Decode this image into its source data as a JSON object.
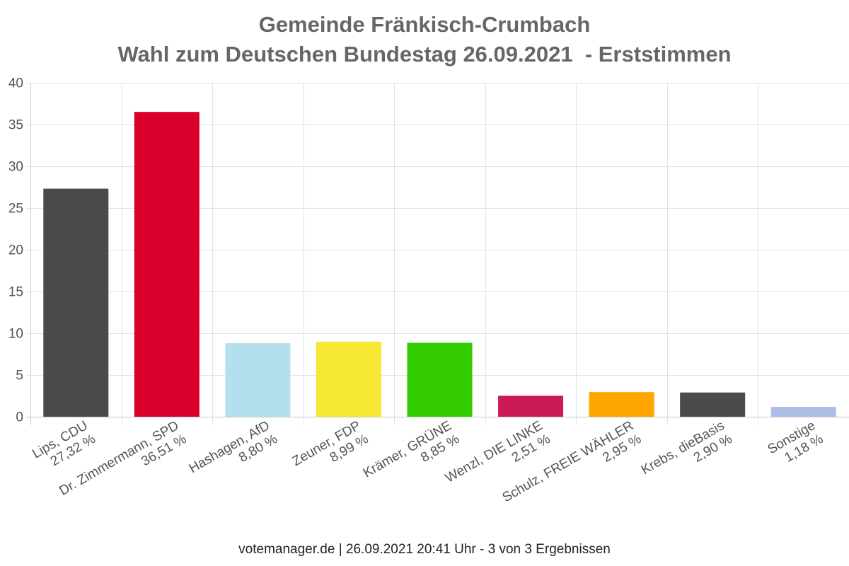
{
  "chart_data": {
    "type": "bar",
    "title": [
      "Gemeinde Fränkisch-Crumbach",
      "Wahl zum Deutschen Bundestag 26.09.2021  - Erststimmen"
    ],
    "xlabel": "",
    "ylabel": "",
    "ylim": [
      0,
      40
    ],
    "yticks": [
      0,
      5,
      10,
      15,
      20,
      25,
      30,
      35,
      40
    ],
    "grid": true,
    "legend": "none",
    "categories": [
      [
        "Lips, CDU",
        "27,32 %"
      ],
      [
        "Dr. Zimmermann, SPD",
        "36,51 %"
      ],
      [
        "Hashagen, AfD",
        "8,80 %"
      ],
      [
        "Zeuner, FDP",
        "8,99 %"
      ],
      [
        "Krämer, GRÜNE",
        "8,85 %"
      ],
      [
        "Wenzl, DIE LINKE",
        "2,51 %"
      ],
      [
        "Schulz, FREIE WÄHLER",
        "2,95 %"
      ],
      [
        "Krebs, dieBasis",
        "2,90 %"
      ],
      [
        "Sonstige",
        "1,18 %"
      ]
    ],
    "values": [
      27.32,
      36.51,
      8.8,
      8.99,
      8.85,
      2.51,
      2.95,
      2.9,
      1.18
    ],
    "colors": [
      "#4a4a4a",
      "#d8002a",
      "#b3dfee",
      "#f7e834",
      "#33cc00",
      "#cc1a55",
      "#ffa500",
      "#4a4a4a",
      "#aebde6"
    ]
  },
  "footer": "votemanager.de | 26.09.2021 20:41 Uhr - 3 von 3 Ergebnissen"
}
